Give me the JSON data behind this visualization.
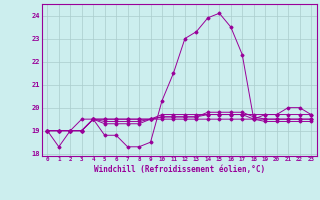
{
  "xlabel": "Windchill (Refroidissement éolien,°C)",
  "ylabel": "",
  "background_color": "#cceeee",
  "line_color": "#990099",
  "grid_color": "#aacccc",
  "x_values": [
    0,
    1,
    2,
    3,
    4,
    5,
    6,
    7,
    8,
    9,
    10,
    11,
    12,
    13,
    14,
    15,
    16,
    17,
    18,
    19,
    20,
    21,
    22,
    23
  ],
  "series": [
    [
      19.0,
      18.3,
      19.0,
      19.5,
      19.5,
      18.8,
      18.8,
      18.3,
      18.3,
      18.5,
      20.3,
      21.5,
      23.0,
      23.3,
      23.9,
      24.1,
      23.5,
      22.3,
      19.5,
      19.7,
      19.7,
      20.0,
      20.0,
      19.7
    ],
    [
      19.0,
      19.0,
      19.0,
      19.0,
      19.5,
      19.3,
      19.3,
      19.3,
      19.3,
      19.5,
      19.5,
      19.5,
      19.5,
      19.5,
      19.5,
      19.5,
      19.5,
      19.5,
      19.5,
      19.5,
      19.5,
      19.5,
      19.5,
      19.5
    ],
    [
      19.0,
      19.0,
      19.0,
      19.0,
      19.5,
      19.5,
      19.5,
      19.5,
      19.5,
      19.5,
      19.7,
      19.7,
      19.7,
      19.7,
      19.7,
      19.7,
      19.7,
      19.7,
      19.7,
      19.7,
      19.7,
      19.7,
      19.7,
      19.7
    ],
    [
      19.0,
      19.0,
      19.0,
      19.0,
      19.5,
      19.5,
      19.5,
      19.5,
      19.5,
      19.5,
      19.6,
      19.6,
      19.6,
      19.6,
      19.8,
      19.8,
      19.8,
      19.8,
      19.6,
      19.5,
      19.5,
      19.5,
      19.5,
      19.5
    ],
    [
      19.0,
      19.0,
      19.0,
      19.0,
      19.5,
      19.4,
      19.4,
      19.4,
      19.4,
      19.5,
      19.6,
      19.6,
      19.6,
      19.6,
      19.7,
      19.7,
      19.7,
      19.7,
      19.5,
      19.4,
      19.4,
      19.4,
      19.4,
      19.4
    ]
  ],
  "ylim": [
    17.9,
    24.5
  ],
  "xlim": [
    -0.5,
    23.5
  ],
  "yticks": [
    18,
    19,
    20,
    21,
    22,
    23,
    24
  ],
  "xtick_labels": [
    "0",
    "1",
    "2",
    "3",
    "4",
    "5",
    "6",
    "7",
    "8",
    "9",
    "10",
    "11",
    "12",
    "13",
    "14",
    "15",
    "16",
    "17",
    "18",
    "19",
    "20",
    "21",
    "22",
    "23"
  ]
}
